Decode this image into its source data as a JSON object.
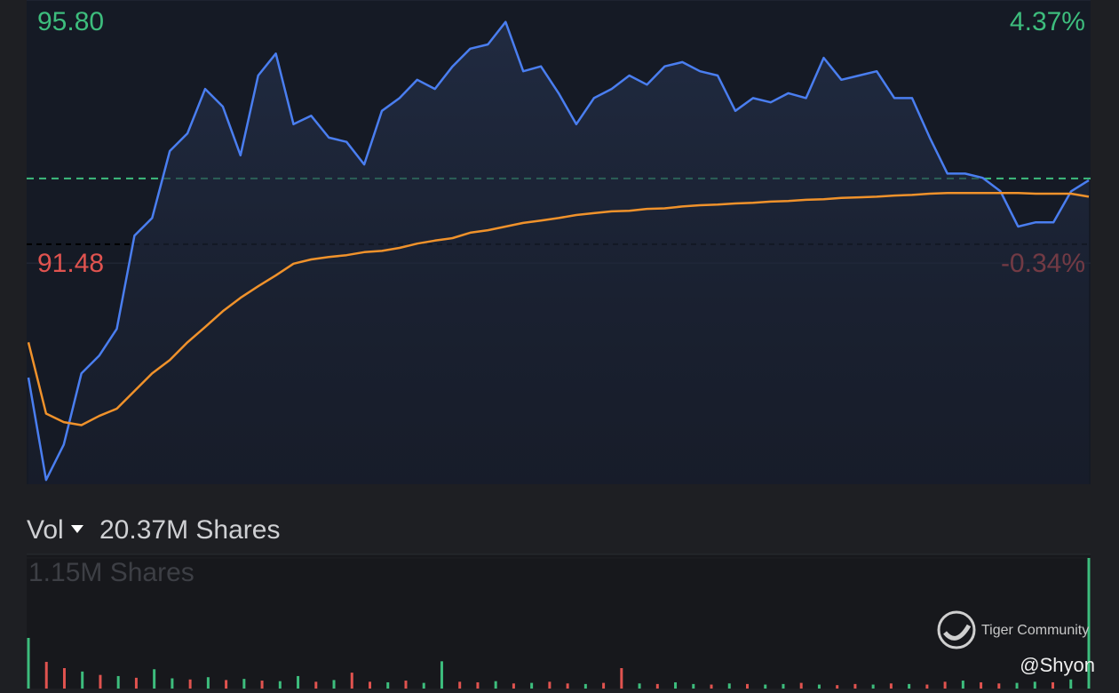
{
  "chart_data": [
    {
      "type": "line",
      "series": [
        {
          "color": "#4a7ef0",
          "values": [
            89.6,
            87.92,
            88.5,
            89.67,
            89.96,
            90.4,
            91.93,
            92.22,
            93.32,
            93.61,
            94.34,
            94.05,
            93.25,
            94.56,
            94.92,
            93.76,
            93.9,
            93.54,
            93.47,
            93.1,
            93.98,
            94.19,
            94.49,
            94.34,
            94.71,
            95.0,
            95.07,
            95.44,
            94.63,
            94.71,
            94.27,
            93.76,
            94.19,
            94.34,
            94.56,
            94.41,
            94.71,
            94.78,
            94.63,
            94.56,
            93.98,
            94.19,
            94.12,
            94.27,
            94.19,
            94.85,
            94.49,
            94.56,
            94.63,
            94.19,
            94.19,
            93.54,
            92.95,
            92.95,
            92.88,
            92.66,
            92.08,
            92.15,
            92.15,
            92.66,
            92.84
          ]
        },
        {
          "color": "#f0922b",
          "values": [
            90.18,
            89.01,
            88.87,
            88.82,
            88.97,
            89.09,
            89.38,
            89.67,
            89.89,
            90.18,
            90.43,
            90.69,
            90.91,
            91.1,
            91.28,
            91.47,
            91.54,
            91.58,
            91.61,
            91.66,
            91.68,
            91.73,
            91.8,
            91.85,
            91.89,
            91.98,
            92.02,
            92.08,
            92.14,
            92.18,
            92.22,
            92.27,
            92.3,
            92.33,
            92.34,
            92.37,
            92.38,
            92.41,
            92.43,
            92.44,
            92.46,
            92.47,
            92.49,
            92.5,
            92.52,
            92.53,
            92.55,
            92.56,
            92.57,
            92.59,
            92.6,
            92.62,
            92.63,
            92.63,
            92.63,
            92.63,
            92.63,
            92.62,
            92.62,
            92.62,
            92.57
          ]
        }
      ],
      "ylim": [
        87.85,
        95.8
      ],
      "yticks": [
        {
          "value": 95.8,
          "label": "95.80"
        },
        {
          "value": 91.48,
          "label": "91.48"
        }
      ],
      "y2lim": [
        -4.3,
        4.37
      ],
      "y2ticks": [
        {
          "value": 4.37,
          "label": "4.37%"
        },
        {
          "value": -0.34,
          "label": "-0.34%"
        }
      ],
      "prev_close": 91.79,
      "last_price": 92.87,
      "up_color": "#3dbd7d",
      "down_color": "#e0534f"
    },
    {
      "type": "bar",
      "label": "Vol",
      "title": "20.37M Shares",
      "values": [
        446000,
        235000,
        180000,
        150000,
        120000,
        110000,
        95000,
        170000,
        90000,
        80000,
        100000,
        75000,
        85000,
        70000,
        65000,
        110000,
        60000,
        75000,
        140000,
        60000,
        55000,
        70000,
        50000,
        240000,
        60000,
        55000,
        65000,
        45000,
        50000,
        60000,
        45000,
        40000,
        50000,
        180000,
        45000,
        40000,
        55000,
        40000,
        35000,
        45000,
        40000,
        35000,
        40000,
        50000,
        35000,
        30000,
        40000,
        35000,
        45000,
        40000,
        35000,
        60000,
        70000,
        55000,
        45000,
        50000,
        60000,
        55000,
        80000,
        1150000
      ],
      "colors": [
        "#3dbd7d",
        "#e0534f",
        "#e0534f",
        "#3dbd7d",
        "#e0534f",
        "#3dbd7d",
        "#e0534f",
        "#3dbd7d",
        "#3dbd7d",
        "#e0534f",
        "#3dbd7d",
        "#e0534f",
        "#3dbd7d",
        "#e0534f",
        "#3dbd7d",
        "#3dbd7d",
        "#e0534f",
        "#3dbd7d",
        "#e0534f",
        "#e0534f",
        "#3dbd7d",
        "#e0534f",
        "#3dbd7d",
        "#3dbd7d",
        "#e0534f",
        "#e0534f",
        "#3dbd7d",
        "#e0534f",
        "#3dbd7d",
        "#e0534f",
        "#e0534f",
        "#3dbd7d",
        "#e0534f",
        "#e0534f",
        "#3dbd7d",
        "#e0534f",
        "#3dbd7d",
        "#3dbd7d",
        "#e0534f",
        "#3dbd7d",
        "#e0534f",
        "#3dbd7d",
        "#3dbd7d",
        "#e0534f",
        "#3dbd7d",
        "#e0534f",
        "#e0534f",
        "#3dbd7d",
        "#e0534f",
        "#3dbd7d",
        "#e0534f",
        "#e0534f",
        "#3dbd7d",
        "#e0534f",
        "#e0534f",
        "#3dbd7d",
        "#3dbd7d",
        "#e0534f",
        "#3dbd7d",
        "#3dbd7d"
      ],
      "ylim": [
        0,
        1150000
      ],
      "yticks": [
        {
          "value": 1150000,
          "label": "1.15M Shares"
        }
      ]
    }
  ],
  "watermark": {
    "brand": "Tiger Community",
    "author": "@Shyon"
  }
}
